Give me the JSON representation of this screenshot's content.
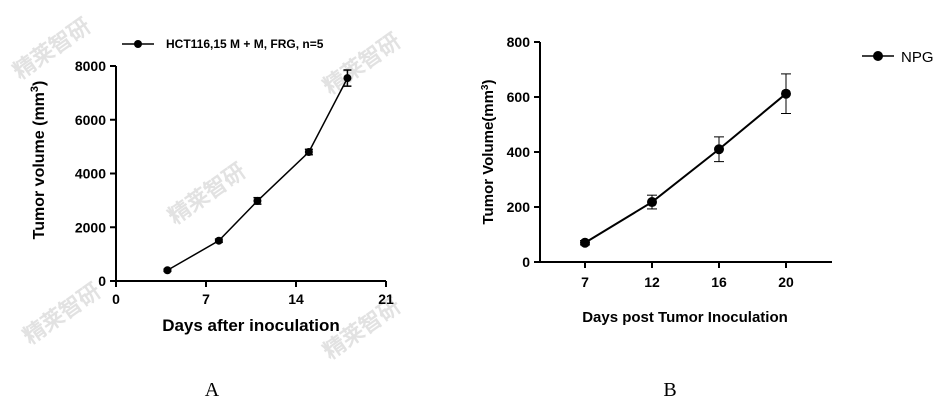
{
  "panels": [
    {
      "label": "A"
    },
    {
      "label": "B"
    }
  ],
  "watermark": "精莱智研",
  "chart_data": [
    {
      "type": "line",
      "title": "",
      "xlabel": "Days after inoculation",
      "ylabel_main": "Tumor volume (mm",
      "ylabel_sup": "3",
      "ylabel_end": ")",
      "xlim": [
        0,
        21
      ],
      "ylim": [
        0,
        8000
      ],
      "xticks": [
        0,
        7,
        14,
        21
      ],
      "yticks": [
        0,
        2000,
        4000,
        6000,
        8000
      ],
      "grid": false,
      "legend_position": "top",
      "series": [
        {
          "name": "HCT116,15 M + M,  FRG, n=5",
          "x": [
            4,
            8,
            11,
            15,
            18
          ],
          "y": [
            400,
            1500,
            2980,
            4800,
            7550
          ],
          "err": [
            40,
            60,
            120,
            100,
            300
          ],
          "color": "#000000"
        }
      ]
    },
    {
      "type": "line",
      "title": "",
      "xlabel": "Days post Tumor Inoculation",
      "ylabel_main": "Tumor Volume(mm",
      "ylabel_sup": "3",
      "ylabel_end": ")",
      "ylim": [
        0,
        800
      ],
      "xcategories": [
        7,
        12,
        16,
        20
      ],
      "yticks": [
        0,
        200,
        400,
        600,
        800
      ],
      "grid": false,
      "legend_position": "right",
      "series": [
        {
          "name": "NPG",
          "x": [
            7,
            12,
            16,
            20
          ],
          "y": [
            70,
            218,
            410,
            612
          ],
          "err": [
            8,
            25,
            45,
            72
          ],
          "color": "#000000"
        }
      ]
    }
  ]
}
